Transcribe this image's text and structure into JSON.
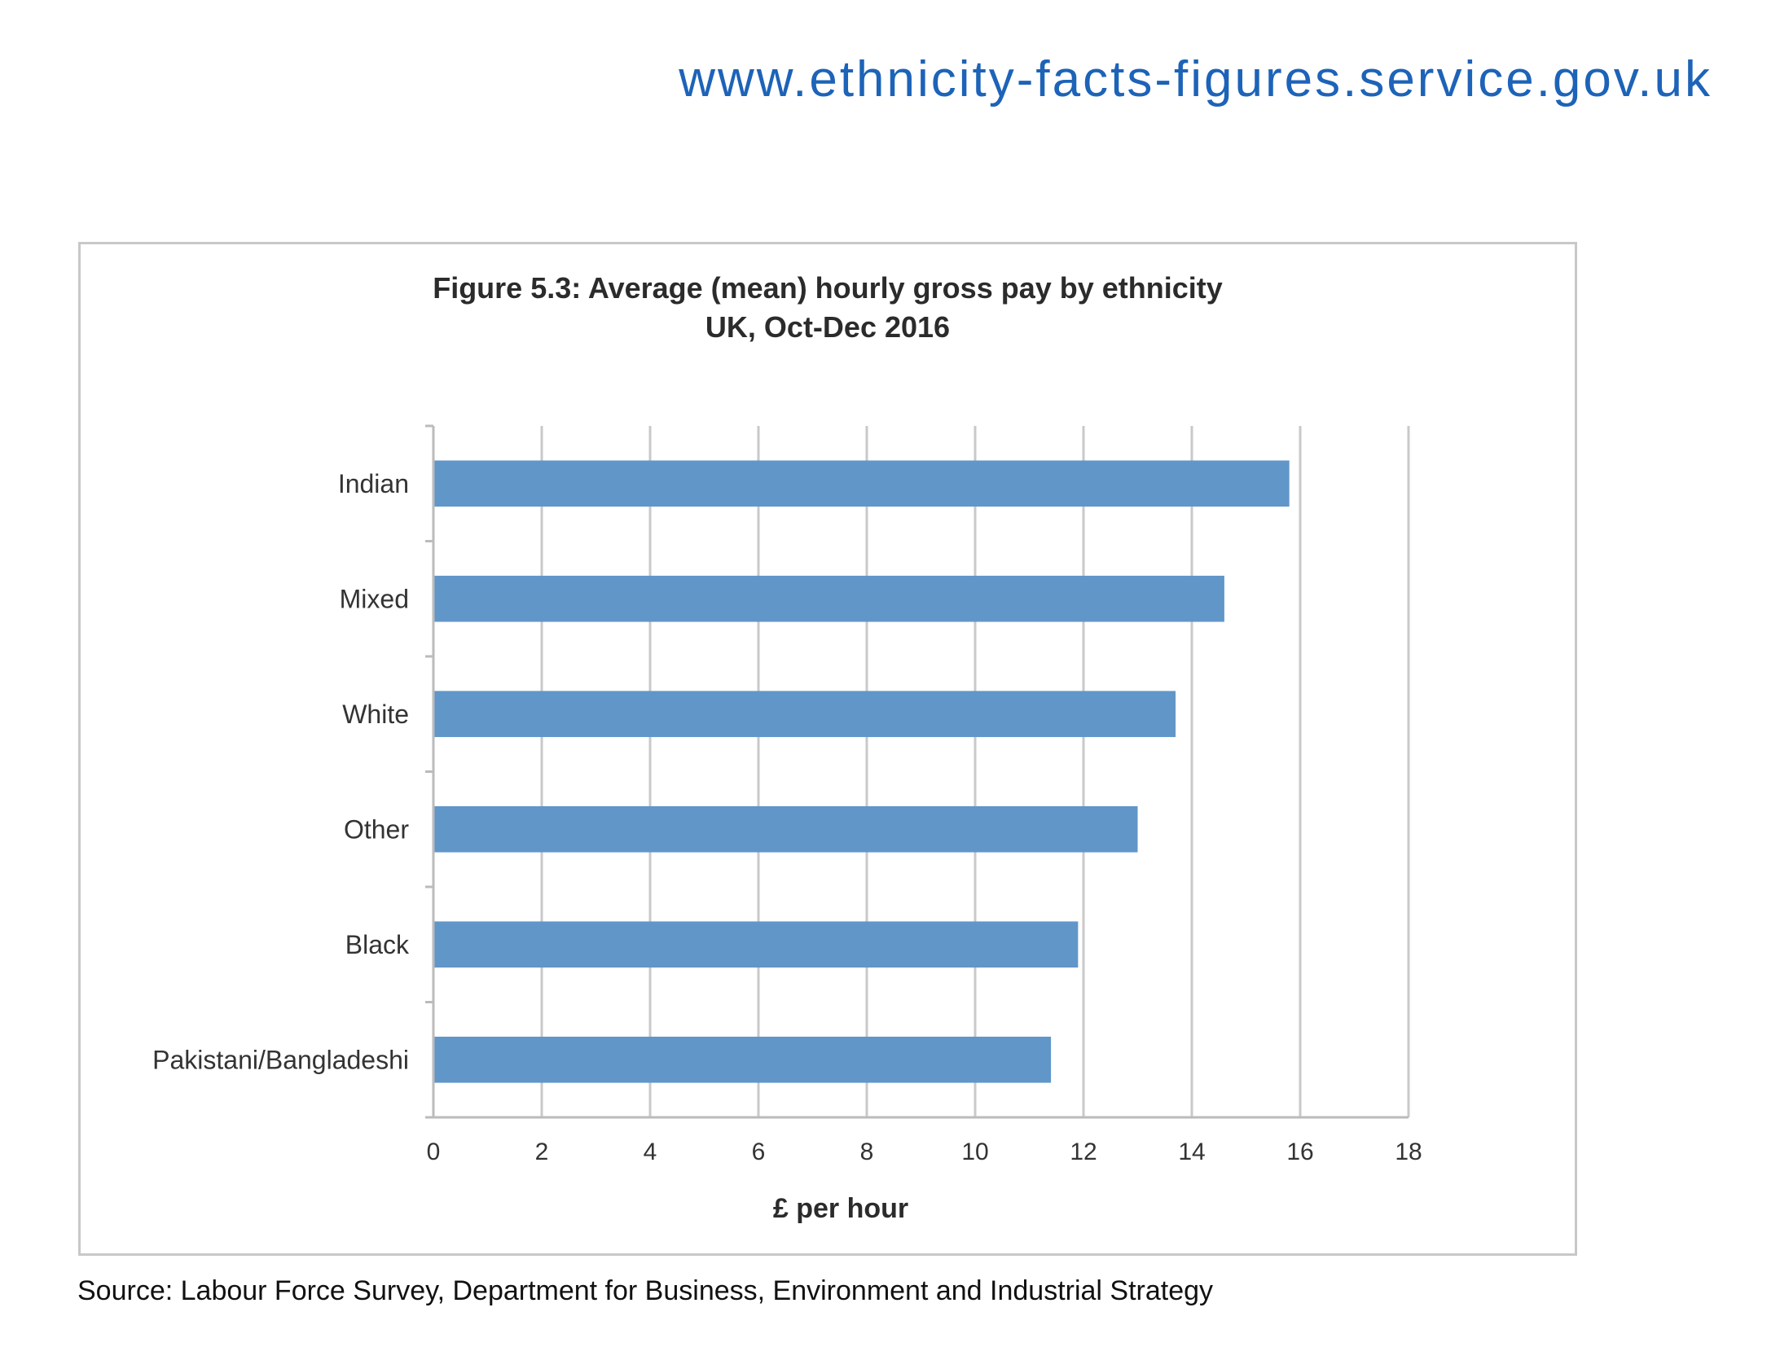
{
  "header": {
    "url": "www.ethnicity-facts-figures.service.gov.uk"
  },
  "chart_data": {
    "type": "bar",
    "orientation": "horizontal",
    "title": "Figure 5.3: Average (mean) hourly gross pay by ethnicity",
    "subtitle": "UK, Oct-Dec 2016",
    "categories": [
      "Indian",
      "Mixed",
      "White",
      "Other",
      "Black",
      "Pakistani/Bangladeshi"
    ],
    "values": [
      15.8,
      14.6,
      13.7,
      13.0,
      11.9,
      11.4
    ],
    "xlabel": "£ per hour",
    "ylabel": "",
    "xlim": [
      0,
      18
    ],
    "x_ticks": [
      "0",
      "2",
      "4",
      "6",
      "8",
      "10",
      "12",
      "14",
      "16",
      "18"
    ],
    "grid": "vertical",
    "legend": "none",
    "bar_color": "#6196c9"
  },
  "footer": {
    "source": "Source: Labour Force Survey, Department for Business, Environment and Industrial Strategy"
  }
}
